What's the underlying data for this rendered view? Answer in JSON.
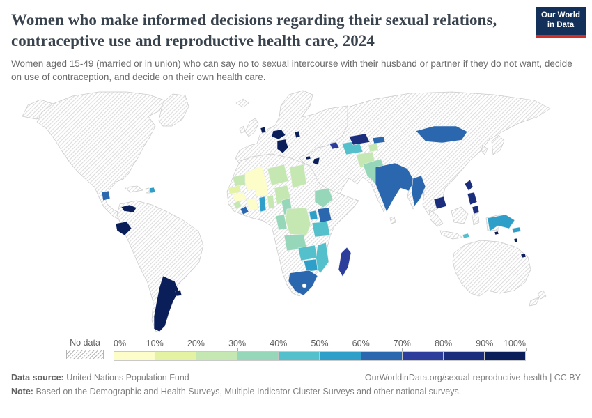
{
  "header": {
    "title": "Women who make informed decisions regarding their sexual relations, contraceptive use and reproductive health care, 2024",
    "subtitle": "Women aged 15-49 (married or in union) who can say no to sexual intercourse with their husband or partner if they do not want, decide on use of contraception, and decide on their own health care.",
    "logo": {
      "line1": "Our World",
      "line2": "in Data",
      "bg_color": "#12305a",
      "accent_color": "#cf2f26"
    }
  },
  "legend": {
    "no_data_label": "No data",
    "tick_labels": [
      "0%",
      "10%",
      "20%",
      "30%",
      "40%",
      "50%",
      "60%",
      "70%",
      "80%",
      "90%",
      "100%"
    ],
    "bucket_colors": [
      "#fcfdc8",
      "#e3f3a3",
      "#c5e8b3",
      "#96d6b9",
      "#53c0cc",
      "#2d9fc9",
      "#2a67af",
      "#2c3d9c",
      "#1b2d7d",
      "#0a1e5a"
    ]
  },
  "chart_data": {
    "type": "choropleth_map",
    "title": "Women who make informed decisions regarding their sexual relations, contraceptive use and reproductive health care, 2024",
    "unit": "% of women aged 15-49 (married or in union)",
    "range": [
      0,
      100
    ],
    "legend_buckets": [
      "0-10%",
      "10-20%",
      "20-30%",
      "30-40%",
      "40-50%",
      "50-60%",
      "60-70%",
      "70-80%",
      "80-90%",
      "90-100%"
    ],
    "no_data_style": "diagonal-hatch",
    "no_data_regions": [
      "United States",
      "Canada",
      "Greenland",
      "Mexico",
      "Brazil",
      "Peru",
      "Colombia",
      "most of Europe",
      "Russia",
      "China",
      "Iran",
      "Saudi Arabia",
      "Northern Africa",
      "Sudan",
      "Somalia",
      "Namibia",
      "Botswana",
      "Thailand",
      "Vietnam",
      "Indonesia",
      "Japan",
      "Australia",
      "New Zealand"
    ],
    "countries": {
      "guatemala": {
        "name": "Guatemala",
        "value_bucket": "60-70%"
      },
      "dominican-republic": {
        "name": "Dominican Republic",
        "value_bucket": "50-60%"
      },
      "panama": {
        "name": "Panama",
        "value_bucket": "90-100%"
      },
      "ecuador": {
        "name": "Ecuador",
        "value_bucket": "90-100%"
      },
      "argentina": {
        "name": "Argentina",
        "value_bucket": "90-100%"
      },
      "uruguay": {
        "name": "Uruguay",
        "value_bucket": "90-100%"
      },
      "netherlands": {
        "name": "Netherlands",
        "value_bucket": "90-100%"
      },
      "czechia": {
        "name": "Czechia / Austria / Hungary",
        "value_bucket": "90-100%"
      },
      "serbia": {
        "name": "Croatia / Serbia / Albania",
        "value_bucket": "90-100%"
      },
      "moldova": {
        "name": "Moldova",
        "value_bucket": "90-100%"
      },
      "cyprus": {
        "name": "Cyprus",
        "value_bucket": "90-100%"
      },
      "jordan": {
        "name": "Jordan",
        "value_bucket": "90-100%"
      },
      "azerbaijan": {
        "name": "Azerbaijan",
        "value_bucket": "70-80%"
      },
      "turkmenistan": {
        "name": "Turkmenistan",
        "value_bucket": "40-50%"
      },
      "uzbekistan": {
        "name": "Uzbekistan",
        "value_bucket": "80-90%"
      },
      "tajikistan": {
        "name": "Tajikistan",
        "value_bucket": "20-30%"
      },
      "kyrgyzstan": {
        "name": "Kyrgyzstan",
        "value_bucket": "60-70%"
      },
      "afghanistan": {
        "name": "Afghanistan",
        "value_bucket": "20-30%"
      },
      "pakistan": {
        "name": "Pakistan",
        "value_bucket": "30-40%"
      },
      "india": {
        "name": "India",
        "value_bucket": "60-70%"
      },
      "myanmar": {
        "name": "Myanmar",
        "value_bucket": "60-70%"
      },
      "cambodia": {
        "name": "Cambodia",
        "value_bucket": "80-90%"
      },
      "mongolia": {
        "name": "Mongolia",
        "value_bucket": "60-70%"
      },
      "philippines": {
        "name": "Philippines",
        "value_bucket": "80-90%"
      },
      "timor-leste": {
        "name": "Timor-Leste",
        "value_bucket": "40-50%"
      },
      "papua-new-guinea": {
        "name": "Papua New Guinea",
        "value_bucket": "50-60%"
      },
      "solomon-islands": {
        "name": "Solomon Islands",
        "value_bucket": "90-100%"
      },
      "vanuatu": {
        "name": "Vanuatu",
        "value_bucket": "90-100%"
      },
      "fiji": {
        "name": "Fiji",
        "value_bucket": "90-100%"
      },
      "mauritania": {
        "name": "Mauritania",
        "value_bucket": "20-30%"
      },
      "senegal": {
        "name": "Senegal",
        "value_bucket": "10-20%"
      },
      "guinea": {
        "name": "Guinea",
        "value_bucket": "0-10%"
      },
      "sierra-leone": {
        "name": "Sierra Leone",
        "value_bucket": "20-30%"
      },
      "liberia": {
        "name": "Liberia",
        "value_bucket": "60-70%"
      },
      "cote-divoire": {
        "name": "Cote d'Ivoire",
        "value_bucket": "0-10%"
      },
      "ghana": {
        "name": "Ghana",
        "value_bucket": "50-60%"
      },
      "togo-benin": {
        "name": "Togo / Benin",
        "value_bucket": "20-30%"
      },
      "mali": {
        "name": "Mali / Burkina Faso",
        "value_bucket": "0-10%"
      },
      "niger": {
        "name": "Niger",
        "value_bucket": "20-30%"
      },
      "nigeria": {
        "name": "Nigeria",
        "value_bucket": "20-30%"
      },
      "chad": {
        "name": "Chad",
        "value_bucket": "20-30%"
      },
      "cameroon": {
        "name": "Cameroon",
        "value_bucket": "30-40%"
      },
      "ethiopia": {
        "name": "Ethiopia",
        "value_bucket": "30-40%"
      },
      "uganda": {
        "name": "Uganda",
        "value_bucket": "50-60%"
      },
      "kenya": {
        "name": "Kenya",
        "value_bucket": "60-70%"
      },
      "tanzania": {
        "name": "Tanzania",
        "value_bucket": "40-50%"
      },
      "drc": {
        "name": "Democratic Republic of Congo",
        "value_bucket": "20-30%"
      },
      "gabon-congo": {
        "name": "Gabon / Congo",
        "value_bucket": "30-40%"
      },
      "angola": {
        "name": "Angola",
        "value_bucket": "30-40%"
      },
      "zambia": {
        "name": "Zambia",
        "value_bucket": "40-50%"
      },
      "mozambique-malawi": {
        "name": "Mozambique / Malawi",
        "value_bucket": "40-50%"
      },
      "zimbabwe": {
        "name": "Zimbabwe",
        "value_bucket": "50-60%"
      },
      "south-africa": {
        "name": "South Africa",
        "value_bucket": "60-70%"
      },
      "madagascar": {
        "name": "Madagascar",
        "value_bucket": "70-80%"
      }
    }
  },
  "footer": {
    "data_source_label": "Data source:",
    "data_source_value": "United Nations Population Fund",
    "link_text": "OurWorldinData.org/sexual-reproductive-health | CC BY",
    "note_label": "Note:",
    "note_text": "Based on the Demographic and Health Surveys, Multiple Indicator Cluster Surveys and other national surveys."
  }
}
